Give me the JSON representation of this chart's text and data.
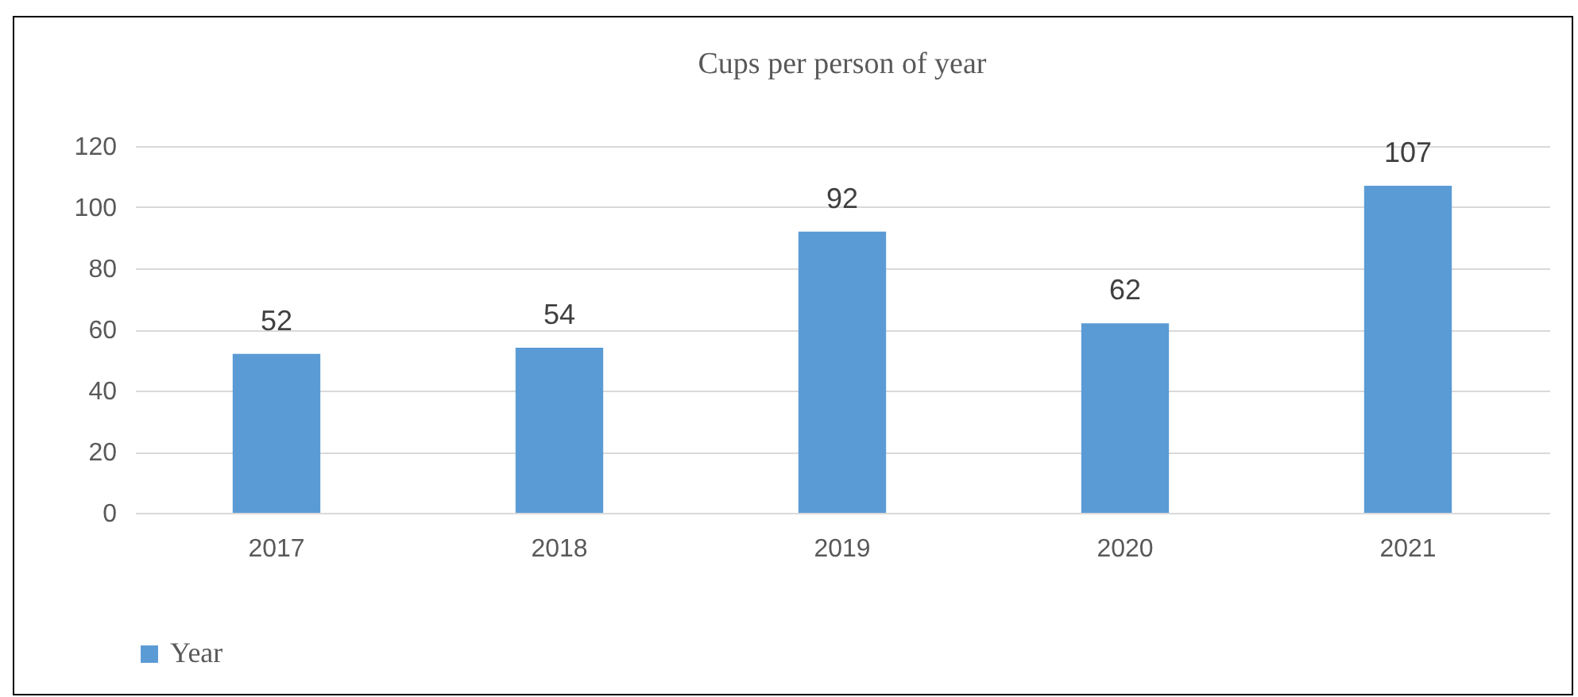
{
  "chart_data": {
    "type": "bar",
    "title": "Cups per person of year",
    "categories": [
      "2017",
      "2018",
      "2019",
      "2020",
      "2021"
    ],
    "series": [
      {
        "name": "Year",
        "color": "#5b9bd5",
        "values": [
          52,
          54,
          92,
          62,
          107
        ]
      }
    ],
    "ylim": [
      0,
      120
    ],
    "yticks": [
      0,
      20,
      40,
      60,
      80,
      100,
      120
    ],
    "grid": "y",
    "legend": "bottom",
    "data_labels": true
  }
}
